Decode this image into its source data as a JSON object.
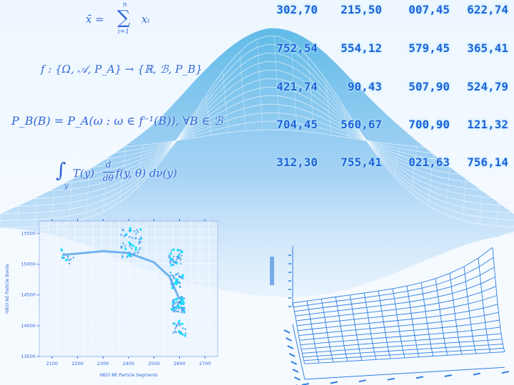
{
  "formulas": {
    "sum_lhs": "x̄ = ",
    "sum_sigma": "∑",
    "sum_upper": "n",
    "sum_lower": "i=1",
    "sum_term": "xᵢ",
    "mapping": "f : {Ω, 𝒜, P_A} → {ℝ, ℬ, P_B}",
    "probability": "P_B(B) = P_A(ω : ω ∈ f⁻¹(B)), ∀B ∈ ℬ",
    "integral_sign": "∫",
    "integral_lower": "y",
    "integral_body": "T(y) ",
    "integral_frac_num": "d",
    "integral_frac_den": "dθ",
    "integral_rest": " f(y, θ) dν(y)"
  },
  "number_table": {
    "rows": [
      [
        "302,70",
        "215,50",
        "007,45",
        "622,74"
      ],
      [
        "752,54",
        "554,12",
        "579,45",
        "365,41"
      ],
      [
        "421,74",
        "90,43",
        "507,90",
        "524,79"
      ],
      [
        "704,45",
        "560,67",
        "700,90",
        "121,32"
      ],
      [
        "312,30",
        "755,41",
        "021,63",
        "756,14"
      ]
    ]
  },
  "chart_data": [
    {
      "type": "scatter",
      "xlabel": "HB(I) NE Particle Segments",
      "ylabel": "HB(I) NE Particle Bonds",
      "xticks": [
        "2100",
        "2200",
        "2300",
        "2400",
        "2500",
        "2600",
        "2700"
      ],
      "yticks": [
        "15500",
        "15000",
        "14500",
        "14000",
        "13500"
      ],
      "xlim": [
        2050,
        2750
      ],
      "ylim": [
        13500,
        15700
      ],
      "clusters": [
        {
          "x": 2160,
          "y": 15120,
          "count": 14
        },
        {
          "x": 2410,
          "y": 15350,
          "count": 60
        },
        {
          "x": 2585,
          "y": 15110,
          "count": 40
        },
        {
          "x": 2590,
          "y": 14740,
          "count": 40
        },
        {
          "x": 2595,
          "y": 14340,
          "count": 70
        },
        {
          "x": 2600,
          "y": 13960,
          "count": 25
        }
      ],
      "fit_curve": [
        [
          2140,
          15150
        ],
        [
          2200,
          15170
        ],
        [
          2300,
          15210
        ],
        [
          2400,
          15180
        ],
        [
          2500,
          15030
        ],
        [
          2560,
          14800
        ],
        [
          2600,
          14430
        ]
      ],
      "grid": true
    },
    {
      "type": "surface",
      "zlabel": "",
      "grid": true
    }
  ],
  "colors": {
    "background": "#f4f9ff",
    "formula_text": "#2f66d8",
    "number_text": "#1f62d9",
    "number_glow": "#9be4ff",
    "mesh_fill": "#8cc3ee",
    "mesh_line": "#ffffff",
    "scatter_point": "#4aa3f0",
    "scatter_highlight": "#00e5ff",
    "surface_line": "#2f7fe0"
  }
}
